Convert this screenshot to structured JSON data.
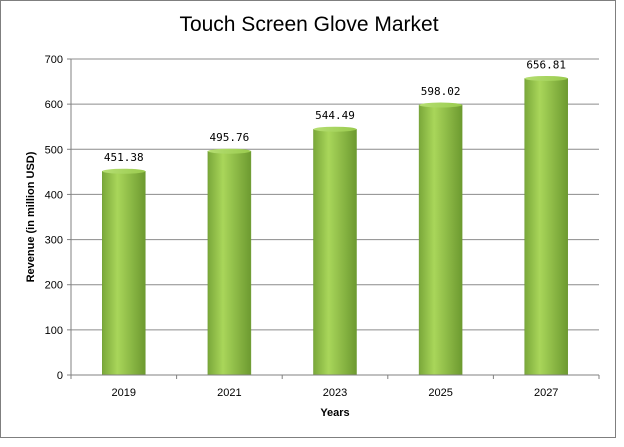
{
  "chart_data": {
    "type": "bar",
    "title": "Touch Screen Glove Market",
    "xlabel": "Years",
    "ylabel": "Revenue (in million USD)",
    "categories": [
      "2019",
      "2021",
      "2023",
      "2025",
      "2027"
    ],
    "values": [
      451.38,
      495.76,
      544.49,
      598.02,
      656.81
    ],
    "data_labels": [
      "451.38",
      "495.76",
      "544.49",
      "598.02",
      "656.81"
    ],
    "ylim": [
      0,
      700
    ],
    "yticks": [
      0,
      100,
      200,
      300,
      400,
      500,
      600,
      700
    ],
    "grid": true,
    "legend": "none",
    "bar_color": "#8dc63f"
  }
}
